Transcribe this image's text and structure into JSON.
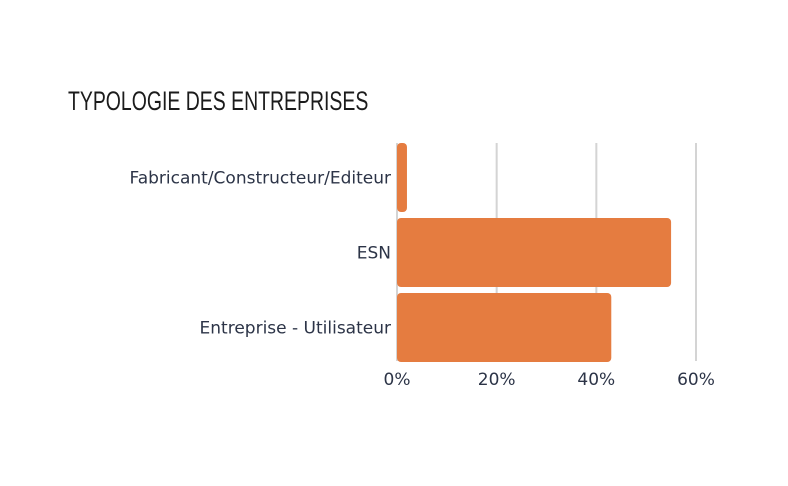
{
  "chart_data": {
    "type": "bar",
    "orientation": "horizontal",
    "title": "TYPOLOGIE DES ENTREPRISES",
    "categories": [
      "Fabricant/Constructeur/Editeur",
      "ESN",
      "Entreprise - Utilisateur"
    ],
    "values": [
      2,
      55,
      43
    ],
    "xlim": [
      0,
      60
    ],
    "ticks": [
      0,
      20,
      40,
      60
    ],
    "tick_labels": [
      "0%",
      "20%",
      "40%",
      "60%"
    ],
    "grid": true,
    "bar_color": "#e57c40",
    "grid_color": "#d4d4d4"
  }
}
